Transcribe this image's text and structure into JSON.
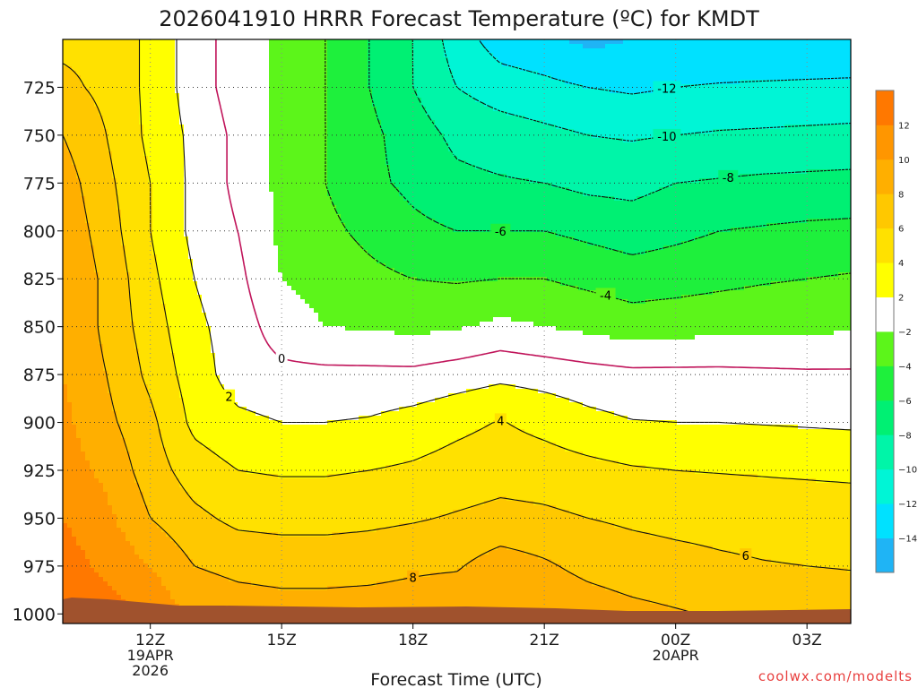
{
  "chart_data": {
    "type": "heatmap",
    "title": "2026041910 HRRR Forecast Temperature (ºC) for KMDT",
    "xlabel": "Forecast Time (UTC)",
    "ylabel": "",
    "credit": "coolwx.com/modelts",
    "x_ticks": [
      {
        "label": "12Z",
        "sub": [
          "19APR",
          "2026"
        ],
        "hour": 12
      },
      {
        "label": "15Z",
        "sub": [],
        "hour": 15
      },
      {
        "label": "18Z",
        "sub": [],
        "hour": 18
      },
      {
        "label": "21Z",
        "sub": [],
        "hour": 21
      },
      {
        "label": "00Z",
        "sub": [
          "20APR"
        ],
        "hour": 24
      },
      {
        "label": "03Z",
        "sub": [],
        "hour": 27
      }
    ],
    "xlim_hours": [
      10,
      28
    ],
    "y_ticks": [
      725,
      750,
      775,
      800,
      825,
      850,
      875,
      900,
      925,
      950,
      975,
      1000
    ],
    "ylim_hpa": [
      700,
      1005
    ],
    "grid": true,
    "colorbar": {
      "position": "right",
      "levels": [
        -16,
        -14,
        -12,
        -10,
        -8,
        -6,
        -4,
        -2,
        2,
        4,
        6,
        8,
        10,
        12,
        14
      ],
      "tick_labels": [
        "-14",
        "-12",
        "-10",
        "-8",
        "-6",
        "-4",
        "-2",
        "2",
        "4",
        "6",
        "8",
        "10",
        "12"
      ],
      "colors": [
        "#1fb4f5",
        "#00e1ff",
        "#00f5d6",
        "#00f5a8",
        "#00f073",
        "#1ef03c",
        "#5cf51a",
        "#ffffff",
        "#ffff00",
        "#ffe100",
        "#ffc800",
        "#ffaf00",
        "#ff9600",
        "#ff7800"
      ]
    },
    "contours": [
      {
        "label": "-12",
        "value": -12,
        "style": "dashed"
      },
      {
        "label": "-10",
        "value": -10,
        "style": "dashed"
      },
      {
        "label": "-8",
        "value": -8,
        "style": "dashed"
      },
      {
        "label": "-6",
        "value": -6,
        "style": "dashed"
      },
      {
        "label": "-4",
        "value": -4,
        "style": "dashed"
      },
      {
        "label": "0",
        "value": 0,
        "style": "freezing"
      },
      {
        "label": "2",
        "value": 2,
        "style": "solid"
      },
      {
        "label": "4",
        "value": 4,
        "style": "solid"
      },
      {
        "label": "6",
        "value": 6,
        "style": "solid"
      },
      {
        "label": "8",
        "value": 8,
        "style": "solid"
      }
    ],
    "temperature_field": {
      "hours": [
        10,
        11,
        12,
        13,
        14,
        15,
        16,
        17,
        18,
        19,
        20,
        21,
        22,
        23,
        24,
        25,
        26,
        27,
        28
      ],
      "pressures": [
        700,
        725,
        750,
        775,
        800,
        825,
        850,
        875,
        900,
        925,
        950,
        975,
        1000
      ],
      "values": [
        [
          5.5,
          5.5,
          3.5,
          1.0,
          -1.0,
          -2.5,
          -4.0,
          -6.0,
          -8.0,
          -11.0,
          -13.0,
          -13.5,
          -14.5,
          -14.0,
          -14.0,
          -14.0,
          -14.0,
          -14.0,
          -14.0
        ],
        [
          6.5,
          5.5,
          3.5,
          1.0,
          -1.0,
          -2.5,
          -4.0,
          -6.0,
          -8.0,
          -10.0,
          -11.0,
          -11.5,
          -12.0,
          -12.3,
          -12.0,
          -11.8,
          -11.7,
          -11.6,
          -11.5
        ],
        [
          8.0,
          6.0,
          3.5,
          1.5,
          -0.5,
          -2.5,
          -4.0,
          -5.5,
          -7.0,
          -8.5,
          -9.0,
          -9.5,
          -10.0,
          -10.2,
          -10.0,
          -9.8,
          -9.7,
          -9.6,
          -9.5
        ],
        [
          9.0,
          6.5,
          4.0,
          1.5,
          -0.5,
          -2.5,
          -4.0,
          -5.5,
          -6.5,
          -7.5,
          -7.8,
          -8.0,
          -8.5,
          -8.6,
          -8.0,
          -7.8,
          -7.6,
          -7.5,
          -7.4
        ],
        [
          9.5,
          7.0,
          4.0,
          1.5,
          0.0,
          -2.5,
          -3.5,
          -4.5,
          -5.5,
          -6.0,
          -6.0,
          -6.0,
          -6.5,
          -7.0,
          -6.5,
          -6.0,
          -5.8,
          -5.6,
          -5.5
        ],
        [
          10.0,
          7.5,
          4.5,
          2.0,
          0.5,
          -2.0,
          -2.8,
          -3.5,
          -4.0,
          -4.2,
          -4.0,
          -4.0,
          -4.5,
          -5.0,
          -4.8,
          -4.5,
          -4.2,
          -4.0,
          -3.8
        ],
        [
          10.0,
          7.5,
          5.0,
          2.5,
          1.0,
          -1.0,
          -2.0,
          -2.2,
          -2.5,
          -2.2,
          -1.5,
          -2.0,
          -2.5,
          -3.0,
          -2.8,
          -2.6,
          -2.5,
          -2.4,
          -2.3
        ],
        [
          10.0,
          8.0,
          5.5,
          3.0,
          1.0,
          0.5,
          0.5,
          0.5,
          0.5,
          1.0,
          1.5,
          1.2,
          0.8,
          0.5,
          0.5,
          0.5,
          0.4,
          0.3,
          0.3
        ],
        [
          10.5,
          8.5,
          6.5,
          3.5,
          2.5,
          2.0,
          2.0,
          2.2,
          2.8,
          3.5,
          4.1,
          3.4,
          2.6,
          2.1,
          2.0,
          2.0,
          1.9,
          1.8,
          1.7
        ],
        [
          11.0,
          9.5,
          7.0,
          5.0,
          4.0,
          3.8,
          3.8,
          4.0,
          4.3,
          4.8,
          5.2,
          5.0,
          4.6,
          4.2,
          4.0,
          3.9,
          3.8,
          3.7,
          3.6
        ],
        [
          12.0,
          10.5,
          8.0,
          6.5,
          5.5,
          5.3,
          5.3,
          5.5,
          5.8,
          6.2,
          6.6,
          6.4,
          6.0,
          5.7,
          5.5,
          5.4,
          5.3,
          5.2,
          5.1
        ],
        [
          13.0,
          11.5,
          10.0,
          8.0,
          7.5,
          7.3,
          7.3,
          7.4,
          7.7,
          7.8,
          9.0,
          8.3,
          7.4,
          6.9,
          6.6,
          6.3,
          6.1,
          6.0,
          5.9
        ],
        [
          14.0,
          13.0,
          11.5,
          9.5,
          9.0,
          8.8,
          8.8,
          8.9,
          9.0,
          9.5,
          10.2,
          9.8,
          9.2,
          8.6,
          8.2,
          7.8,
          7.5,
          7.2,
          7.0
        ]
      ]
    }
  }
}
